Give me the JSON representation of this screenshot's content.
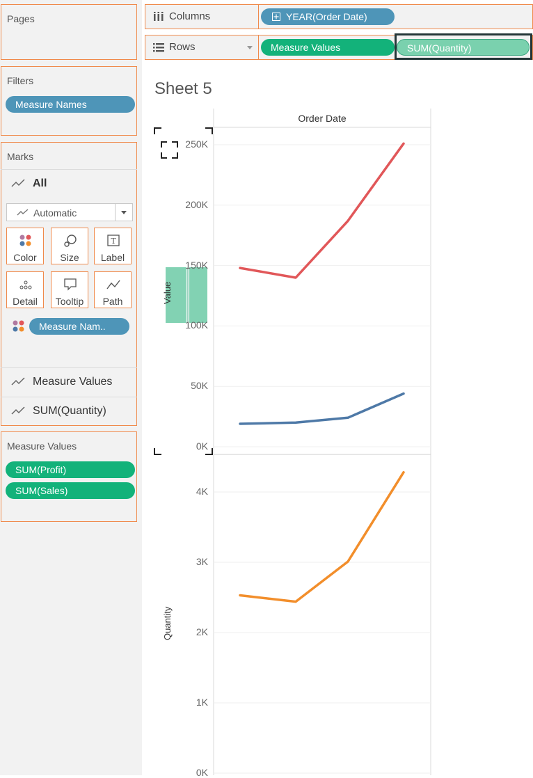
{
  "sidebar": {
    "pages_title": "Pages",
    "filters_title": "Filters",
    "filters_pill": "Measure Names",
    "marks_title": "Marks",
    "marks_all": "All",
    "mark_type": "Automatic",
    "buttons": {
      "color": "Color",
      "size": "Size",
      "label": "Label",
      "detail": "Detail",
      "tooltip": "Tooltip",
      "path": "Path"
    },
    "color_pill": "Measure Nam..",
    "mark_cards": [
      "Measure Values",
      "SUM(Quantity)"
    ],
    "measure_values_title": "Measure Values",
    "measure_values_pills": [
      "SUM(Profit)",
      "SUM(Sales)"
    ]
  },
  "shelves": {
    "columns_label": "Columns",
    "columns_pill": "YEAR(Order Date)",
    "rows_label": "Rows",
    "rows_pills": [
      "Measure Values",
      "SUM(Quantity)"
    ]
  },
  "sheet_title": "Sheet 5",
  "colors": {
    "accent_orange": "#f08a4b",
    "pill_blue": "#4e95b8",
    "pill_green": "#13b27a",
    "sales_line": "#e15759",
    "profit_line": "#4e79a7",
    "quantity_line": "#f28e2b"
  },
  "chart_data": [
    {
      "type": "line",
      "title": "Order Date",
      "ylabel": "Value",
      "ylim": [
        0,
        260000
      ],
      "y_ticks": [
        "250K",
        "200K",
        "150K",
        "100K",
        "50K",
        "0K"
      ],
      "y_tick_values": [
        250000,
        200000,
        150000,
        100000,
        50000,
        0
      ],
      "x": [
        1,
        2,
        3,
        4
      ],
      "series": [
        {
          "values": [
            148000,
            140000,
            187000,
            251000
          ],
          "color": "#e15759"
        },
        {
          "values": [
            19000,
            20000,
            24000,
            44000
          ],
          "color": "#4e79a7"
        }
      ]
    },
    {
      "type": "line",
      "ylabel": "Quantity",
      "ylim": [
        0,
        4400
      ],
      "y_ticks": [
        "4K",
        "3K",
        "2K",
        "1K",
        "0K"
      ],
      "y_tick_values": [
        4000,
        3000,
        2000,
        1000,
        0
      ],
      "x": [
        1,
        2,
        3,
        4
      ],
      "series": [
        {
          "values": [
            2530,
            2440,
            3010,
            4280
          ],
          "color": "#f28e2b"
        }
      ]
    }
  ]
}
